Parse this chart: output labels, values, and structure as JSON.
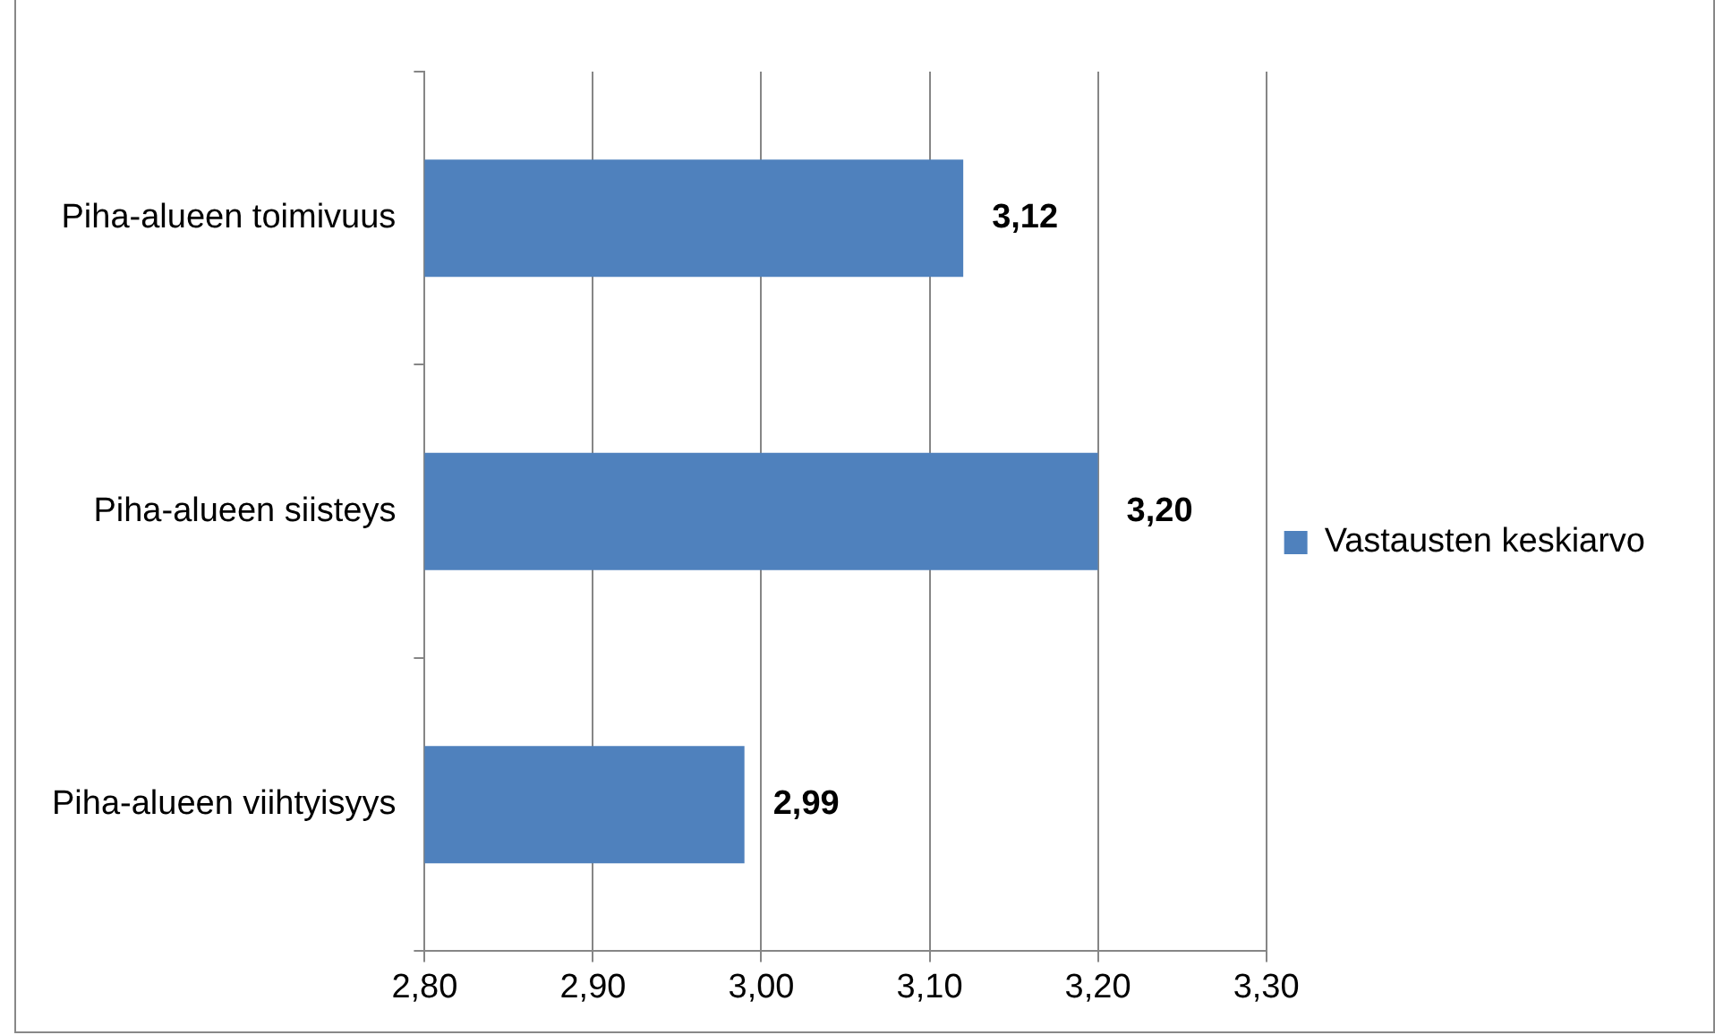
{
  "chart_data": {
    "type": "bar",
    "orientation": "horizontal",
    "categories": [
      "Piha-alueen toimivuus",
      "Piha-alueen siisteys",
      "Piha-alueen viihtyisyys"
    ],
    "series": [
      {
        "name": "Vastausten keskiarvo",
        "color": "#4f81bd",
        "values": [
          3.12,
          3.2,
          2.99
        ],
        "value_labels": [
          "3,12",
          "3,20",
          "2,99"
        ]
      }
    ],
    "xlim": [
      2.8,
      3.3
    ],
    "xticks": [
      {
        "value": 2.8,
        "label": "2,80"
      },
      {
        "value": 2.9,
        "label": "2,90"
      },
      {
        "value": 3.0,
        "label": "3,00"
      },
      {
        "value": 3.1,
        "label": "3,10"
      },
      {
        "value": 3.2,
        "label": "3,20"
      },
      {
        "value": 3.3,
        "label": "3,30"
      }
    ],
    "grid": "x",
    "legend": "right"
  }
}
